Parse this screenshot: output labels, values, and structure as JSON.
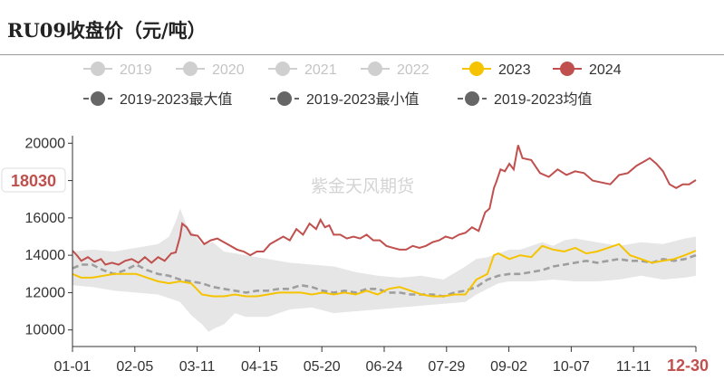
{
  "chart_data": {
    "type": "line",
    "title": "RU09收盘价（元/吨）",
    "watermark": "紫金天风期货",
    "legend": {
      "position": "top",
      "entries": [
        {
          "name": "2019",
          "color": "#cfcfcf"
        },
        {
          "name": "2020",
          "color": "#cfcfcf"
        },
        {
          "name": "2021",
          "color": "#cfcfcf"
        },
        {
          "name": "2022",
          "color": "#cfcfcf"
        },
        {
          "name": "2023",
          "color": "#f5c300"
        },
        {
          "name": "2024",
          "color": "#c0504d"
        },
        {
          "name": "2019-2023最大值",
          "color": "#666666"
        },
        {
          "name": "2019-2023最小值",
          "color": "#666666"
        },
        {
          "name": "2019-2023均值",
          "color": "#666666"
        }
      ]
    },
    "y_axis": {
      "min": 9500,
      "max": 20500,
      "ticks": [
        10000,
        12000,
        14000,
        16000,
        18000,
        20000
      ]
    },
    "x_axis": {
      "ticks": [
        "01-01",
        "02-05",
        "03-11",
        "04-15",
        "05-20",
        "06-24",
        "07-29",
        "09-02",
        "10-07",
        "11-11",
        "12-30"
      ]
    },
    "highlight_label": {
      "text": "18030",
      "value": 18030,
      "color": "#c0504d"
    },
    "grid": false,
    "series": [
      {
        "name": "2024",
        "color": "#c0504d",
        "values": [
          [
            1,
            14250
          ],
          [
            3,
            14000
          ],
          [
            5,
            13700
          ],
          [
            8,
            13900
          ],
          [
            11,
            13650
          ],
          [
            14,
            13800
          ],
          [
            16,
            13500
          ],
          [
            19,
            13600
          ],
          [
            22,
            13500
          ],
          [
            25,
            13700
          ],
          [
            28,
            13800
          ],
          [
            31,
            13600
          ],
          [
            34,
            13900
          ],
          [
            37,
            13600
          ],
          [
            40,
            13900
          ],
          [
            43,
            13700
          ],
          [
            46,
            14100
          ],
          [
            48,
            14150
          ],
          [
            50,
            15000
          ],
          [
            51,
            15700
          ],
          [
            53,
            15500
          ],
          [
            55,
            15100
          ],
          [
            58,
            15050
          ],
          [
            61,
            14600
          ],
          [
            64,
            14800
          ],
          [
            67,
            14900
          ],
          [
            70,
            14700
          ],
          [
            73,
            14500
          ],
          [
            76,
            14300
          ],
          [
            79,
            14200
          ],
          [
            82,
            14000
          ],
          [
            85,
            14200
          ],
          [
            88,
            14200
          ],
          [
            91,
            14600
          ],
          [
            94,
            14800
          ],
          [
            97,
            15000
          ],
          [
            100,
            14800
          ],
          [
            103,
            15400
          ],
          [
            106,
            15100
          ],
          [
            109,
            15700
          ],
          [
            112,
            15400
          ],
          [
            114,
            15900
          ],
          [
            116,
            15500
          ],
          [
            118,
            15600
          ],
          [
            120,
            15100
          ],
          [
            123,
            15100
          ],
          [
            126,
            14900
          ],
          [
            129,
            15000
          ],
          [
            132,
            14900
          ],
          [
            135,
            15100
          ],
          [
            138,
            14800
          ],
          [
            141,
            14800
          ],
          [
            144,
            14500
          ],
          [
            147,
            14400
          ],
          [
            150,
            14300
          ],
          [
            153,
            14300
          ],
          [
            156,
            14500
          ],
          [
            159,
            14400
          ],
          [
            162,
            14500
          ],
          [
            165,
            14700
          ],
          [
            168,
            14800
          ],
          [
            171,
            15000
          ],
          [
            174,
            14900
          ],
          [
            177,
            15100
          ],
          [
            180,
            15200
          ],
          [
            183,
            15500
          ],
          [
            186,
            15300
          ],
          [
            189,
            16300
          ],
          [
            191,
            16500
          ],
          [
            193,
            17600
          ],
          [
            194,
            17900
          ],
          [
            196,
            18600
          ],
          [
            198,
            18500
          ],
          [
            200,
            18900
          ],
          [
            202,
            18600
          ],
          [
            204,
            19900
          ],
          [
            206,
            19200
          ],
          [
            210,
            19100
          ],
          [
            214,
            18400
          ],
          [
            218,
            18200
          ],
          [
            222,
            18600
          ],
          [
            226,
            18300
          ],
          [
            230,
            18500
          ],
          [
            234,
            18400
          ],
          [
            238,
            18000
          ],
          [
            242,
            17900
          ],
          [
            246,
            17800
          ],
          [
            250,
            18300
          ],
          [
            254,
            18400
          ],
          [
            258,
            18800
          ],
          [
            261,
            19000
          ],
          [
            264,
            19200
          ],
          [
            267,
            18900
          ],
          [
            270,
            18500
          ],
          [
            273,
            17800
          ],
          [
            276,
            17600
          ],
          [
            279,
            17800
          ],
          [
            282,
            17800
          ],
          [
            285,
            18030
          ]
        ]
      },
      {
        "name": "2023",
        "color": "#f5c300",
        "values": [
          [
            1,
            13000
          ],
          [
            5,
            12800
          ],
          [
            10,
            12800
          ],
          [
            15,
            12900
          ],
          [
            20,
            13000
          ],
          [
            25,
            13000
          ],
          [
            30,
            13000
          ],
          [
            35,
            12800
          ],
          [
            40,
            12600
          ],
          [
            45,
            12500
          ],
          [
            50,
            12600
          ],
          [
            55,
            12500
          ],
          [
            60,
            11900
          ],
          [
            65,
            11800
          ],
          [
            70,
            11800
          ],
          [
            75,
            11900
          ],
          [
            80,
            11800
          ],
          [
            85,
            11800
          ],
          [
            90,
            11900
          ],
          [
            95,
            12000
          ],
          [
            100,
            12000
          ],
          [
            105,
            12000
          ],
          [
            110,
            11900
          ],
          [
            115,
            12000
          ],
          [
            120,
            11900
          ],
          [
            125,
            12000
          ],
          [
            130,
            11900
          ],
          [
            135,
            12100
          ],
          [
            140,
            11900
          ],
          [
            145,
            12200
          ],
          [
            150,
            12300
          ],
          [
            155,
            12100
          ],
          [
            160,
            11900
          ],
          [
            165,
            11800
          ],
          [
            170,
            11800
          ],
          [
            175,
            11900
          ],
          [
            180,
            11900
          ],
          [
            185,
            12700
          ],
          [
            190,
            13000
          ],
          [
            193,
            14000
          ],
          [
            195,
            14100
          ],
          [
            200,
            13800
          ],
          [
            205,
            14000
          ],
          [
            210,
            13900
          ],
          [
            215,
            14500
          ],
          [
            220,
            14300
          ],
          [
            225,
            14200
          ],
          [
            230,
            14400
          ],
          [
            235,
            14100
          ],
          [
            240,
            14200
          ],
          [
            245,
            14400
          ],
          [
            250,
            14600
          ],
          [
            255,
            14000
          ],
          [
            260,
            13800
          ],
          [
            265,
            13600
          ],
          [
            270,
            13700
          ],
          [
            275,
            13800
          ],
          [
            280,
            14000
          ],
          [
            285,
            14250
          ]
        ]
      },
      {
        "name": "2019-2023均值",
        "color": "#9e9e9e",
        "values": [
          [
            1,
            13300
          ],
          [
            5,
            13500
          ],
          [
            10,
            13500
          ],
          [
            15,
            13200
          ],
          [
            20,
            13000
          ],
          [
            25,
            13200
          ],
          [
            30,
            13500
          ],
          [
            35,
            13200
          ],
          [
            40,
            13000
          ],
          [
            45,
            12900
          ],
          [
            50,
            12700
          ],
          [
            55,
            12600
          ],
          [
            60,
            12500
          ],
          [
            65,
            12300
          ],
          [
            70,
            12200
          ],
          [
            75,
            12100
          ],
          [
            80,
            12000
          ],
          [
            85,
            12100
          ],
          [
            90,
            12100
          ],
          [
            95,
            12200
          ],
          [
            100,
            12200
          ],
          [
            105,
            12400
          ],
          [
            110,
            12300
          ],
          [
            115,
            12100
          ],
          [
            120,
            12000
          ],
          [
            125,
            12100
          ],
          [
            130,
            12000
          ],
          [
            135,
            12200
          ],
          [
            140,
            12200
          ],
          [
            145,
            12000
          ],
          [
            150,
            12000
          ],
          [
            155,
            11900
          ],
          [
            160,
            11900
          ],
          [
            165,
            11900
          ],
          [
            170,
            11800
          ],
          [
            175,
            12000
          ],
          [
            180,
            12100
          ],
          [
            185,
            12300
          ],
          [
            190,
            12700
          ],
          [
            195,
            12900
          ],
          [
            200,
            13000
          ],
          [
            205,
            13000
          ],
          [
            210,
            13100
          ],
          [
            215,
            13200
          ],
          [
            220,
            13400
          ],
          [
            225,
            13500
          ],
          [
            230,
            13600
          ],
          [
            235,
            13700
          ],
          [
            240,
            13600
          ],
          [
            245,
            13700
          ],
          [
            250,
            13800
          ],
          [
            255,
            13700
          ],
          [
            260,
            13700
          ],
          [
            265,
            13600
          ],
          [
            270,
            13800
          ],
          [
            275,
            13700
          ],
          [
            280,
            13800
          ],
          [
            285,
            14000
          ]
        ]
      },
      {
        "name": "2019-2023最大值",
        "color": "#e0e0e0",
        "values": [
          [
            1,
            14200
          ],
          [
            10,
            14300
          ],
          [
            20,
            14200
          ],
          [
            30,
            14400
          ],
          [
            40,
            14600
          ],
          [
            45,
            15000
          ],
          [
            48,
            15800
          ],
          [
            50,
            16500
          ],
          [
            53,
            15600
          ],
          [
            56,
            15200
          ],
          [
            60,
            14600
          ],
          [
            65,
            14700
          ],
          [
            70,
            14200
          ],
          [
            80,
            14000
          ],
          [
            90,
            13800
          ],
          [
            100,
            13600
          ],
          [
            110,
            13500
          ],
          [
            120,
            13400
          ],
          [
            130,
            13100
          ],
          [
            140,
            12900
          ],
          [
            150,
            12800
          ],
          [
            160,
            12900
          ],
          [
            170,
            12700
          ],
          [
            180,
            13400
          ],
          [
            185,
            13800
          ],
          [
            190,
            13900
          ],
          [
            195,
            14100
          ],
          [
            200,
            14300
          ],
          [
            205,
            14300
          ],
          [
            210,
            14500
          ],
          [
            215,
            14700
          ],
          [
            220,
            14500
          ],
          [
            225,
            14800
          ],
          [
            230,
            14900
          ],
          [
            240,
            14700
          ],
          [
            250,
            14500
          ],
          [
            260,
            14700
          ],
          [
            270,
            14600
          ],
          [
            280,
            14900
          ],
          [
            285,
            15000
          ]
        ]
      },
      {
        "name": "2019-2023最小值",
        "color": "#e0e0e0",
        "values": [
          [
            1,
            12400
          ],
          [
            10,
            12300
          ],
          [
            20,
            12100
          ],
          [
            30,
            12000
          ],
          [
            40,
            11900
          ],
          [
            50,
            11500
          ],
          [
            55,
            10800
          ],
          [
            60,
            10300
          ],
          [
            63,
            9900
          ],
          [
            66,
            10100
          ],
          [
            70,
            10300
          ],
          [
            75,
            10900
          ],
          [
            80,
            10700
          ],
          [
            90,
            10700
          ],
          [
            100,
            11100
          ],
          [
            110,
            11200
          ],
          [
            120,
            10900
          ],
          [
            130,
            11000
          ],
          [
            140,
            11100
          ],
          [
            150,
            11200
          ],
          [
            160,
            11300
          ],
          [
            170,
            11400
          ],
          [
            180,
            11500
          ],
          [
            185,
            11900
          ],
          [
            190,
            12200
          ],
          [
            195,
            12500
          ],
          [
            200,
            12600
          ],
          [
            210,
            12600
          ],
          [
            220,
            12700
          ],
          [
            230,
            12600
          ],
          [
            240,
            12600
          ],
          [
            250,
            12700
          ],
          [
            260,
            12900
          ],
          [
            270,
            12700
          ],
          [
            280,
            12800
          ],
          [
            285,
            12900
          ]
        ]
      }
    ]
  }
}
